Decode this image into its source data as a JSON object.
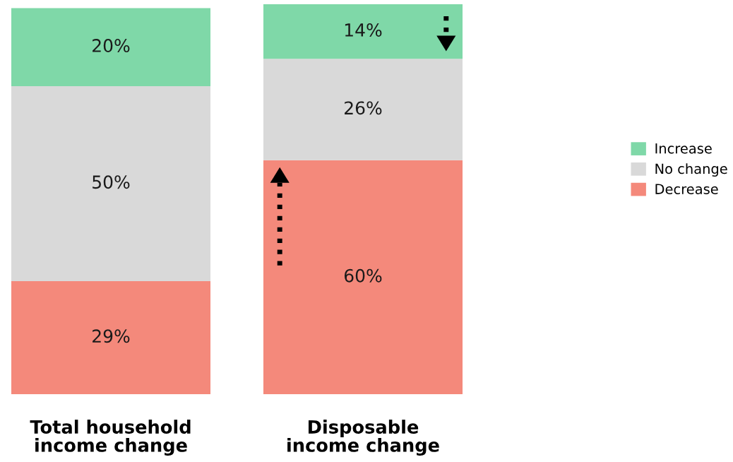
{
  "chart_data": {
    "type": "bar",
    "stacked": true,
    "categories": [
      "Total household\nincome change",
      "Disposable\nincome change"
    ],
    "series": [
      {
        "name": "Decrease",
        "color": "#f4897b",
        "values": [
          29,
          60
        ],
        "value_labels": [
          "29%",
          "60%"
        ]
      },
      {
        "name": "No change",
        "color": "#d9d9d9",
        "values": [
          50,
          26
        ],
        "value_labels": [
          "50%",
          "26%"
        ]
      },
      {
        "name": "Increase",
        "color": "#7fd8a8",
        "values": [
          20,
          14
        ],
        "value_labels": [
          "20%",
          "14%"
        ]
      }
    ],
    "legend": "right"
  }
}
